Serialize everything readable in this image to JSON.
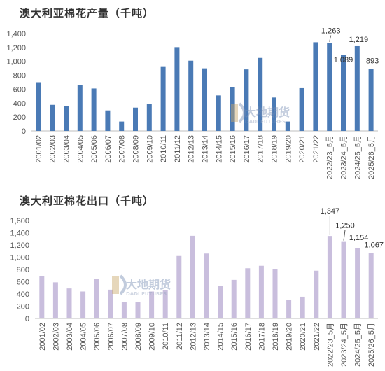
{
  "watermark": {
    "cn": "大地期货",
    "en": "DADI FUTURES"
  },
  "chart_data": [
    {
      "type": "bar",
      "title": "澳大利亚棉花产量（千吨）",
      "color": "#4a7ab5",
      "ylim": [
        0,
        1400
      ],
      "yticks": [
        "0",
        "200",
        "400",
        "600",
        "800",
        "1,000",
        "1,200",
        "1,400"
      ],
      "grid": false,
      "categories": [
        "2001/02",
        "2002/03",
        "2003/04",
        "2004/05",
        "2005/06",
        "2006/07",
        "2007/08",
        "2008/09",
        "2009/10",
        "2010/11",
        "2011/12",
        "2012/13",
        "2013/14",
        "2014/15",
        "2015/16",
        "2016/17",
        "2017/18",
        "2018/19",
        "2019/20",
        "2020/21",
        "2021/22",
        "2022/23_5月",
        "2023/24_5月",
        "2024/25_5月",
        "2025/26_5月"
      ],
      "values": [
        700,
        375,
        355,
        660,
        610,
        295,
        135,
        335,
        385,
        920,
        1205,
        1010,
        900,
        510,
        625,
        885,
        1050,
        480,
        135,
        615,
        1275,
        1263,
        1089,
        1219,
        893
      ],
      "data_labels": [
        {
          "index": 21,
          "text": "1,263"
        },
        {
          "index": 22,
          "text": "1,089"
        },
        {
          "index": 23,
          "text": "1,219"
        },
        {
          "index": 24,
          "text": "893"
        }
      ]
    },
    {
      "type": "bar",
      "title": "澳大利亚棉花出口（千吨）",
      "color": "#c9bedd",
      "ylim": [
        0,
        1600
      ],
      "yticks": [
        "0",
        "200",
        "400",
        "600",
        "800",
        "1,000",
        "1,200",
        "1,400",
        "1,600"
      ],
      "grid": false,
      "categories": [
        "2001/02",
        "2002/03",
        "2003/04",
        "2004/05",
        "2005/06",
        "2006/07",
        "2007/08",
        "2008/09",
        "2009/10",
        "2010/11",
        "2011/12",
        "2012/13",
        "2013/14",
        "2014/15",
        "2015/16",
        "2016/17",
        "2017/18",
        "2018/19",
        "2019/20",
        "2020/21",
        "2021/22",
        "2022/23_5月",
        "2023/24_5月",
        "2024/25_5月",
        "2025/26_5月"
      ],
      "values": [
        690,
        590,
        490,
        440,
        640,
        470,
        270,
        270,
        440,
        460,
        1020,
        1350,
        1060,
        530,
        630,
        820,
        860,
        800,
        300,
        355,
        780,
        1347,
        1250,
        1154,
        1067
      ],
      "data_labels": [
        {
          "index": 21,
          "text": "1,347"
        },
        {
          "index": 22,
          "text": "1,250"
        },
        {
          "index": 23,
          "text": "1,154"
        },
        {
          "index": 24,
          "text": "1,067"
        }
      ]
    }
  ]
}
